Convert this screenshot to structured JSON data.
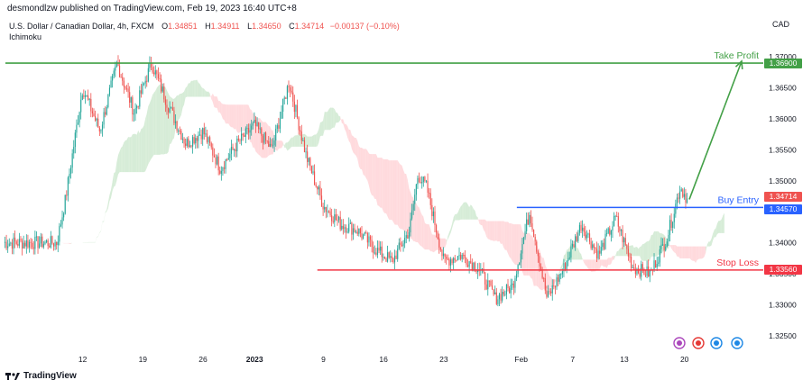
{
  "header": {
    "publisher": "desmondlzw published on TradingView.com, Feb 19, 2023 16:40 UTC+8",
    "symbol": "U.S. Dollar / Canadian Dollar, 4h, FXCM",
    "open_label": "O",
    "open": "1.34851",
    "high_label": "H",
    "high": "1.34911",
    "low_label": "L",
    "low": "1.34650",
    "close_label": "C",
    "close": "1.34714",
    "change": "−0.00137 (−0.10%)",
    "indicator": "Ichimoku",
    "currency": "CAD"
  },
  "footer": {
    "brand": "TradingView"
  },
  "colors": {
    "up": "#26a69a",
    "down": "#ef5350",
    "take_profit": "#43a047",
    "entry": "#2962ff",
    "stop": "#f23645",
    "cloud_bull": "#c8e6c9",
    "cloud_bear": "#ffcdd2"
  },
  "chart_data": {
    "type": "candlestick",
    "title": "U.S. Dollar / Canadian Dollar, 4h, FXCM",
    "ylim": [
      1.3225,
      1.3725
    ],
    "y_ticks": [
      1.325,
      1.33,
      1.335,
      1.34,
      1.345,
      1.35,
      1.355,
      1.36,
      1.365,
      1.37
    ],
    "y_tick_labels": [
      "1.32500",
      "1.33000",
      "1.33500",
      "1.34000",
      "1.34500",
      "1.35000",
      "1.35500",
      "1.36000",
      "1.36500",
      "1.37000"
    ],
    "x_ticks": [
      {
        "label": "12",
        "day": 3
      },
      {
        "label": "19",
        "day": 10
      },
      {
        "label": "26",
        "day": 17
      },
      {
        "label": "2023",
        "day": 23
      },
      {
        "label": "9",
        "day": 31
      },
      {
        "label": "16",
        "day": 38
      },
      {
        "label": "23",
        "day": 45
      },
      {
        "label": "Feb",
        "day": 54
      },
      {
        "label": "7",
        "day": 60
      },
      {
        "label": "13",
        "day": 66
      },
      {
        "label": "20",
        "day": 73
      }
    ],
    "anchors": [
      [
        0,
        1.34
      ],
      [
        1,
        1.347
      ],
      [
        3,
        1.365
      ],
      [
        5,
        1.358
      ],
      [
        7,
        1.369
      ],
      [
        9,
        1.361
      ],
      [
        11,
        1.369
      ],
      [
        13,
        1.362
      ],
      [
        15,
        1.356
      ],
      [
        17,
        1.358
      ],
      [
        19,
        1.352
      ],
      [
        21,
        1.356
      ],
      [
        23,
        1.359
      ],
      [
        25,
        1.355
      ],
      [
        27,
        1.366
      ],
      [
        29,
        1.354
      ],
      [
        31,
        1.346
      ],
      [
        33,
        1.343
      ],
      [
        35,
        1.342
      ],
      [
        37,
        1.339
      ],
      [
        39,
        1.337
      ],
      [
        41,
        1.342
      ],
      [
        42,
        1.351
      ],
      [
        43,
        1.349
      ],
      [
        45,
        1.337
      ],
      [
        47,
        1.338
      ],
      [
        49,
        1.336
      ],
      [
        51,
        1.331
      ],
      [
        53,
        1.333
      ],
      [
        55,
        1.345
      ],
      [
        57,
        1.331
      ],
      [
        59,
        1.336
      ],
      [
        61,
        1.343
      ],
      [
        63,
        1.338
      ],
      [
        65,
        1.344
      ],
      [
        67,
        1.336
      ],
      [
        69,
        1.335
      ],
      [
        71,
        1.341
      ],
      [
        72.5,
        1.349
      ],
      [
        73.3,
        1.3471
      ]
    ],
    "levels": [
      {
        "name": "Take Profit",
        "value": 1.369,
        "label": "1.36900"
      },
      {
        "name": "Buy Entry",
        "value": 1.3457,
        "label": "1.34570"
      },
      {
        "name": "Stop Loss",
        "value": 1.3356,
        "label": "1.33560"
      }
    ],
    "last_price": {
      "value": 1.34714,
      "label": "1.34714"
    }
  }
}
